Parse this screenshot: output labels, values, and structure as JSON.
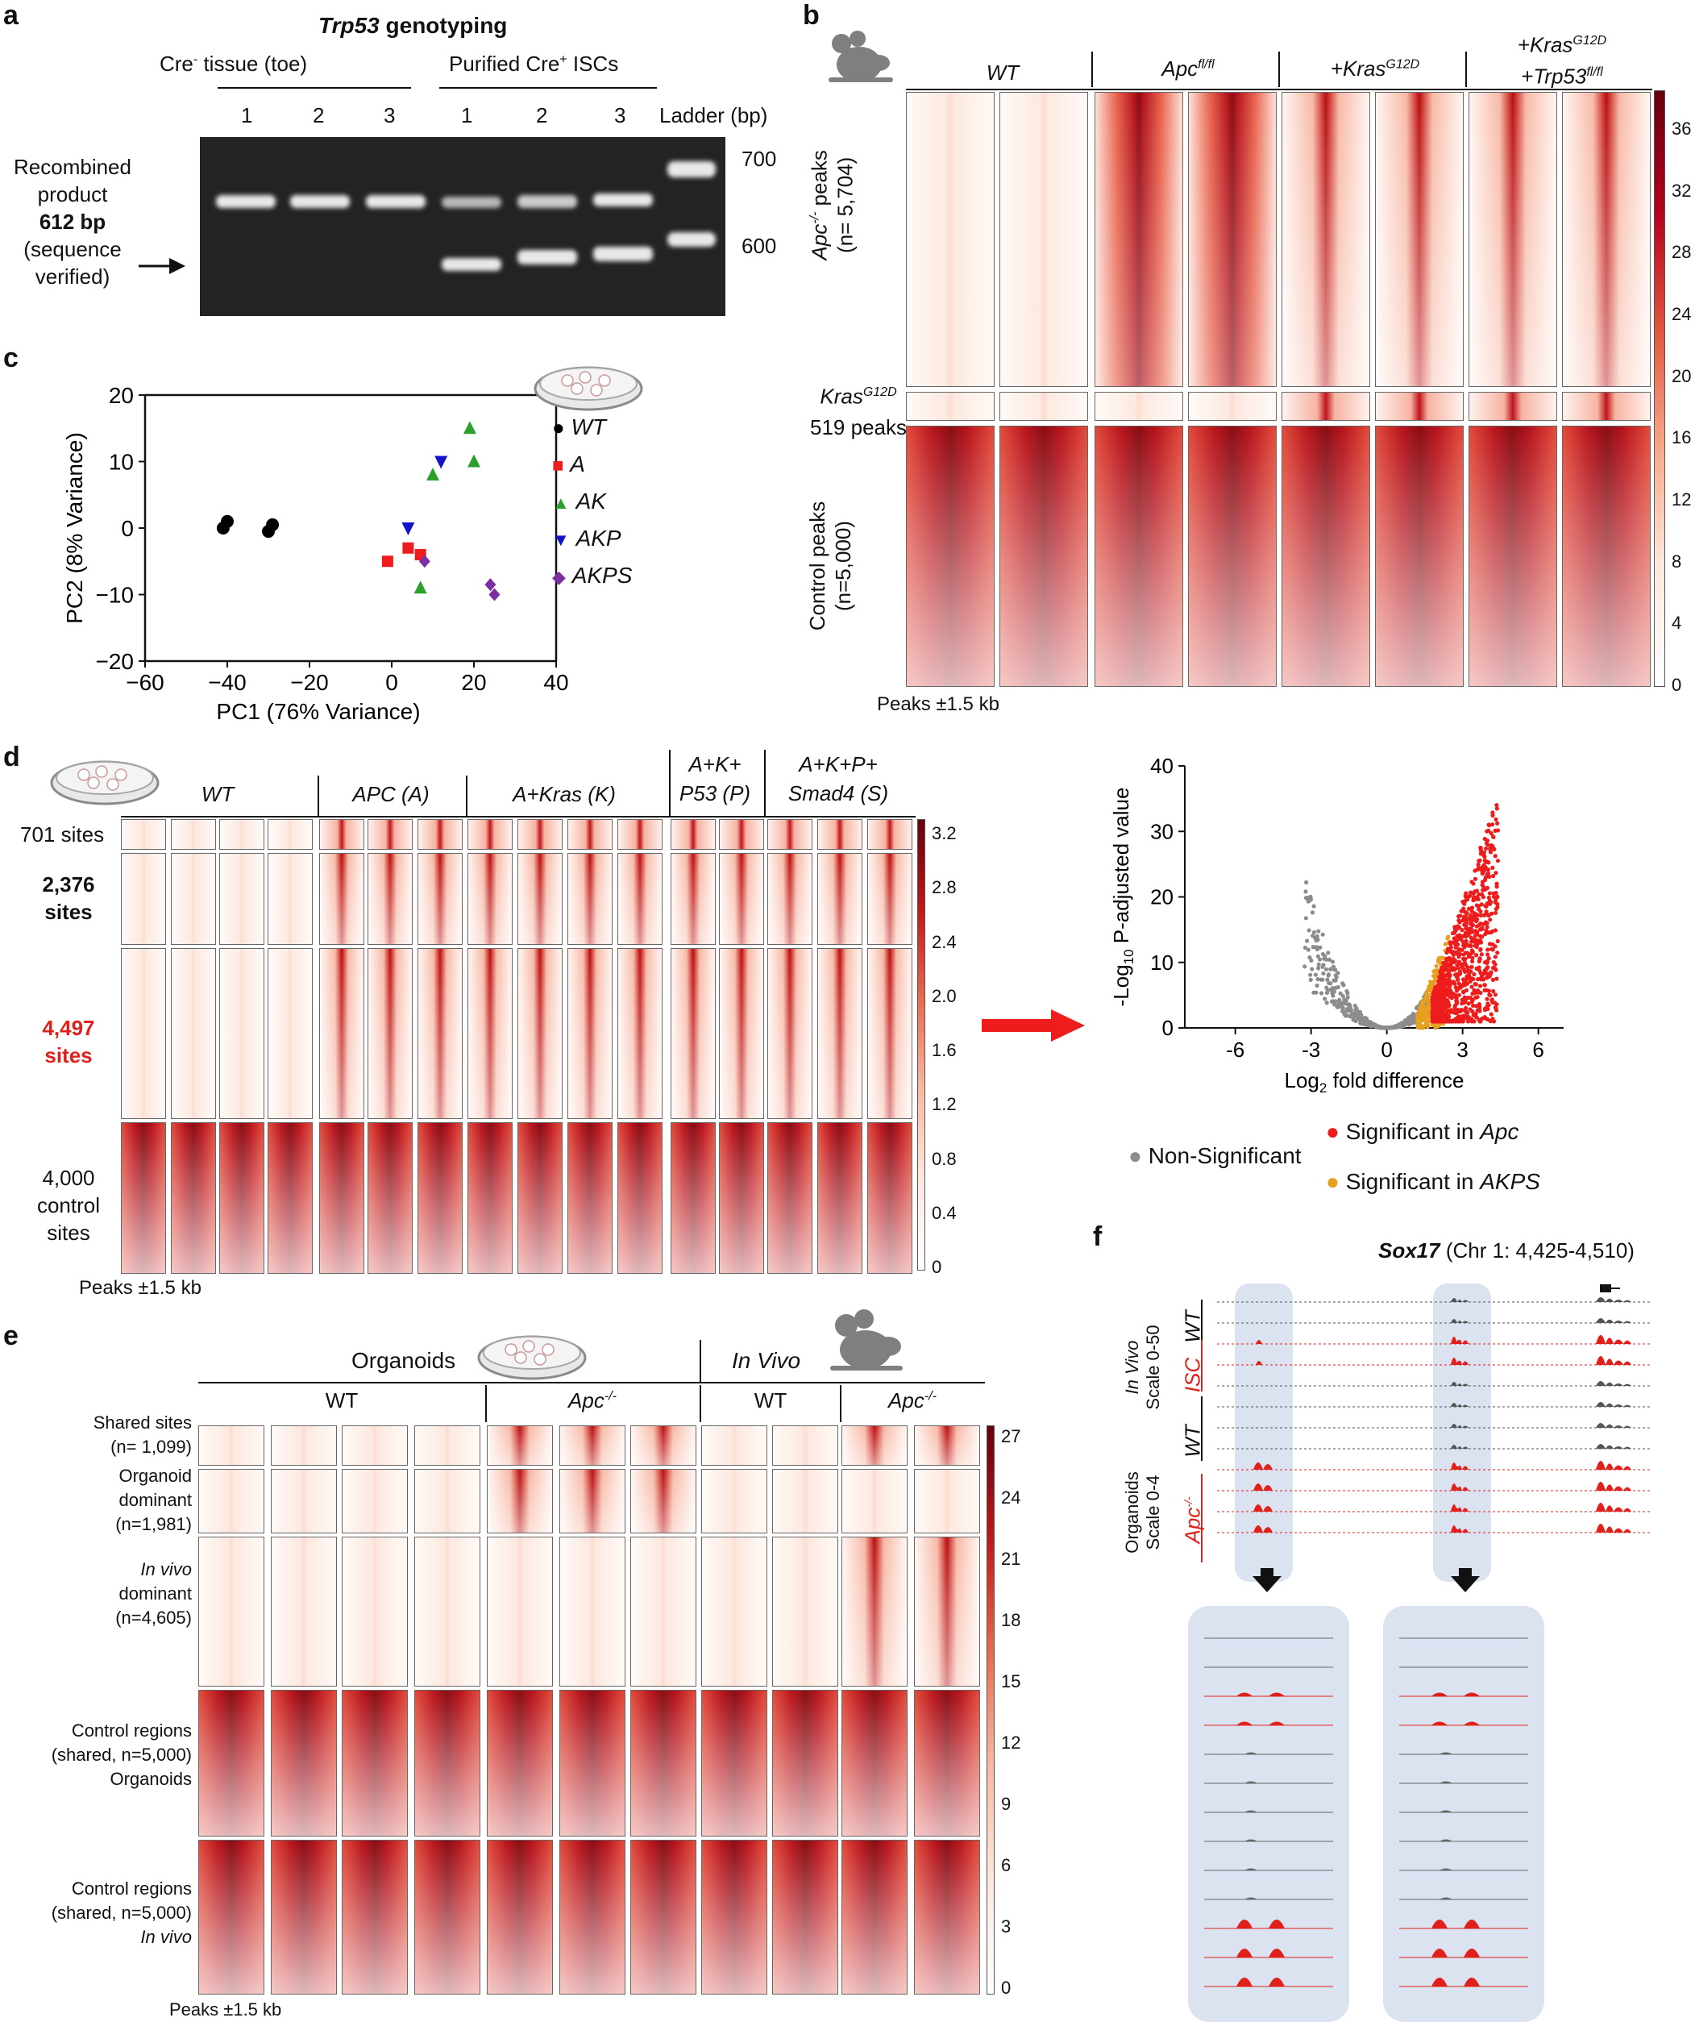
{
  "panels": {
    "a": "a",
    "b": "b",
    "c": "c",
    "d": "d",
    "e": "e",
    "f": "f"
  },
  "panel_a": {
    "title": "Trp53",
    "title_suffix": " genotyping",
    "group1": "Cre",
    "group1_sup": "-",
    "group1_suffix": " tissue (toe)",
    "group2_prefix": "Purified Cre",
    "group2_sup": "+",
    "group2_suffix": " ISCs",
    "lanes": [
      "1",
      "2",
      "3",
      "1",
      "2",
      "3"
    ],
    "ladder": "Ladder (bp)",
    "marker_700": "700",
    "marker_600": "600",
    "left_line1": "Recombined",
    "left_line2": "product",
    "left_line3": "612 bp",
    "left_line4": "(sequence",
    "left_line5": "verified)"
  },
  "panel_b": {
    "col_wt": "WT",
    "col_apc_base": "Apc",
    "col_apc_sup": "fl/fl",
    "col_kras_base": "+Kras",
    "col_kras_sup": "G12D",
    "col_trp_line1_base": "+Kras",
    "col_trp_line1_sup": "G12D",
    "col_trp_line2_base": "+Trp53",
    "col_trp_line2_sup": "fl/fl",
    "row1_base": "Apc",
    "row1_sup": "-/-",
    "row1_suffix": " peaks",
    "row1_n": "(n= 5,704)",
    "row2_base": "Kras",
    "row2_sup": "G12D",
    "row2_n": "519 peaks",
    "row3_label": "Control peaks",
    "row3_n": "(n=5,000)",
    "footer": "Peaks ±1.5 kb",
    "colorbar_ticks": [
      "36",
      "32",
      "28",
      "24",
      "20",
      "16",
      "12",
      "8",
      "4",
      "0"
    ]
  },
  "panel_d": {
    "cols": [
      "WT",
      "APC (A)",
      "A+Kras (K)",
      "A+K+",
      "P53 (P)",
      "A+K+P+",
      "Smad4 (S)"
    ],
    "row1": "701 sites",
    "row2a": "2,376",
    "row2b": "sites",
    "row3a": "4,497",
    "row3b": "sites",
    "row4a": "4,000",
    "row4b": "control",
    "row4c": "sites",
    "footer": "Peaks ±1.5 kb",
    "colorbar_ticks": [
      "3.2",
      "2.8",
      "2.4",
      "2.0",
      "1.6",
      "1.2",
      "0.8",
      "0.4",
      "0"
    ]
  },
  "panel_e": {
    "organoids": "Organoids",
    "invivo": "In Vivo",
    "wt1": "WT",
    "apc1_base": "Apc",
    "apc1_sup": "-/-",
    "wt2": "WT",
    "apc2_base": "Apc",
    "apc2_sup": "-/-",
    "row1a": "Shared sites",
    "row1b": "(n= 1,099)",
    "row2a": "Organoid",
    "row2b": "dominant",
    "row2c": "(n=1,981)",
    "row3a": "In vivo",
    "row3b": "dominant",
    "row3c": "(n=4,605)",
    "row4a": "Control regions",
    "row4b": "(shared, n=5,000)",
    "row4c": "Organoids",
    "row5a": "Control regions",
    "row5b": "(shared, n=5,000)",
    "row5c": "In vivo",
    "footer": "Peaks ±1.5 kb",
    "colorbar_ticks": [
      "27",
      "24",
      "21",
      "18",
      "15",
      "12",
      "9",
      "6",
      "3",
      "0"
    ]
  },
  "panel_f": {
    "gene": "Sox17",
    "locus": " (Chr 1: 4,425-4,510)",
    "invivo_line1": "In Vivo",
    "invivo_line2": "Scale 0-50",
    "org_line1": "Organoids",
    "org_line2": "Scale 0-4",
    "wt_a": "WT",
    "isc": "ISC",
    "wt_b": "WT",
    "apc_base": "Apc",
    "apc_sup": "-/-"
  },
  "legend_volcano": {
    "nonsig": "Non-Significant",
    "sig_apc_prefix": "Significant in ",
    "sig_apc_it": "Apc",
    "sig_akps_prefix": "Significant in ",
    "sig_akps_it": "AKPS"
  },
  "chart_data": [
    {
      "type": "scatter",
      "title": "",
      "xlabel": "PC1 (76% Variance)",
      "ylabel": "PC2 (8% Variance)",
      "xlim": [
        -60,
        40
      ],
      "ylim": [
        -20,
        20
      ],
      "xticks": [
        "-60",
        "-40",
        "-20",
        "0",
        "20",
        "40"
      ],
      "yticks": [
        "20",
        "10",
        "0",
        "-10",
        "-20"
      ],
      "series": [
        {
          "name": "WT",
          "color": "#000000",
          "marker": "circle",
          "points": [
            [
              -41,
              0
            ],
            [
              -40,
              1
            ],
            [
              -30,
              -0.5
            ],
            [
              -29,
              0.5
            ]
          ]
        },
        {
          "name": "A",
          "color": "#ee1c1c",
          "marker": "square",
          "points": [
            [
              -1,
              -5
            ],
            [
              4,
              -3
            ],
            [
              7,
              -4
            ]
          ]
        },
        {
          "name": "AK",
          "color": "#2ca02c",
          "marker": "triangle",
          "points": [
            [
              10,
              8
            ],
            [
              19,
              15
            ],
            [
              20,
              10
            ],
            [
              7,
              -9
            ]
          ]
        },
        {
          "name": "AKP",
          "color": "#1212cc",
          "marker": "triangle-down",
          "points": [
            [
              12,
              10
            ],
            [
              4,
              0
            ]
          ]
        },
        {
          "name": "AKPS",
          "color": "#7b2fa0",
          "marker": "diamond",
          "points": [
            [
              8,
              -5
            ],
            [
              24,
              -8.5
            ],
            [
              25,
              -10
            ]
          ]
        }
      ]
    },
    {
      "type": "scatter",
      "title": "",
      "xlabel": "Log2 fold difference",
      "ylabel": "-Log10 P-adjusted value",
      "xlim": [
        -8,
        7
      ],
      "ylim": [
        0,
        40
      ],
      "xticks": [
        "-6",
        "-3",
        "0",
        "3",
        "6"
      ],
      "yticks": [
        "40",
        "30",
        "20",
        "10",
        "0"
      ],
      "series": [
        {
          "name": "Non-Significant",
          "color": "#8c8c8c"
        },
        {
          "name": "Significant in Apc",
          "color": "#ee1c1c"
        },
        {
          "name": "Significant in AKPS",
          "color": "#e5a020"
        }
      ]
    }
  ]
}
